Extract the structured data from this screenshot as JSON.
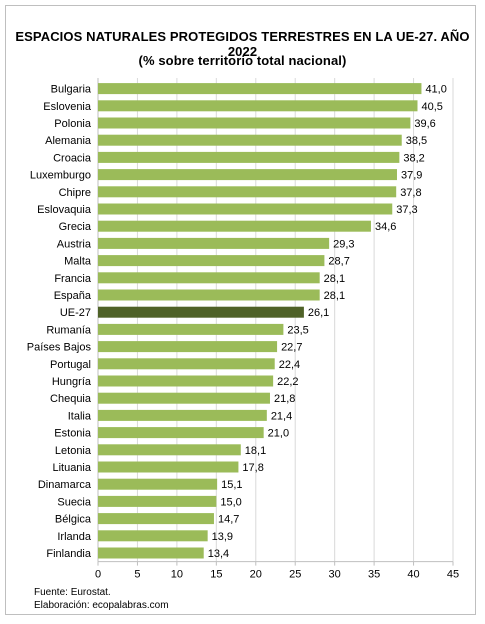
{
  "title": "ESPACIOS NATURALES PROTEGIDOS TERRESTRES EN LA UE-27. AÑO 2022",
  "subtitle": "(% sobre territorio total nacional)",
  "source": "Fuente: Eurostat.",
  "credit": "Elaboración: ecopalabras.com",
  "colors": {
    "bar": "#9bbb59",
    "highlight": "#4f6228",
    "grid": "#d9d9d9",
    "axis": "#bfbfbf"
  },
  "chart_data": {
    "type": "bar",
    "orientation": "horizontal",
    "categories": [
      "Bulgaria",
      "Eslovenia",
      "Polonia",
      "Alemania",
      "Croacia",
      "Luxemburgo",
      "Chipre",
      "Eslovaquia",
      "Grecia",
      "Austria",
      "Malta",
      "Francia",
      "España",
      "UE-27",
      "Rumanía",
      "Países Bajos",
      "Portugal",
      "Hungría",
      "Chequia",
      "Italia",
      "Estonia",
      "Letonia",
      "Lituania",
      "Dinamarca",
      "Suecia",
      "Bélgica",
      "Irlanda",
      "Finlandia"
    ],
    "values": [
      41.0,
      40.5,
      39.6,
      38.5,
      38.2,
      37.9,
      37.8,
      37.3,
      34.6,
      29.3,
      28.7,
      28.1,
      28.1,
      26.1,
      23.5,
      22.7,
      22.4,
      22.2,
      21.8,
      21.4,
      21.0,
      18.1,
      17.8,
      15.1,
      15.0,
      14.7,
      13.9,
      13.4
    ],
    "value_labels": [
      "41,0",
      "40,5",
      "39,6",
      "38,5",
      "38,2",
      "37,9",
      "37,8",
      "37,3",
      "34,6",
      "29,3",
      "28,7",
      "28,1",
      "28,1",
      "26,1",
      "23,5",
      "22,7",
      "22,4",
      "22,2",
      "21,8",
      "21,4",
      "21,0",
      "18,1",
      "17,8",
      "15,1",
      "15,0",
      "14,7",
      "13,9",
      "13,4"
    ],
    "highlight": "UE-27",
    "xlim": [
      0,
      45
    ],
    "xticks": [
      "0",
      "5",
      "10",
      "15",
      "20",
      "25",
      "30",
      "35",
      "40",
      "45"
    ],
    "grid": true
  }
}
